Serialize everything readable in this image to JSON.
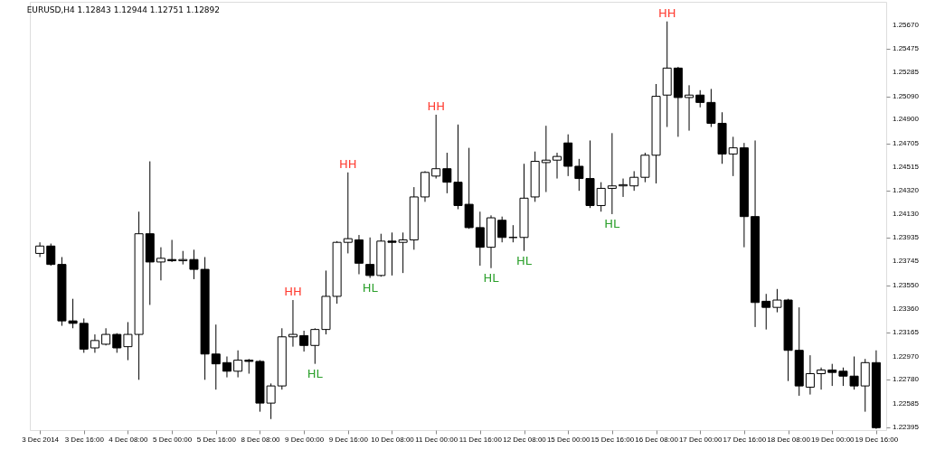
{
  "chart_data": {
    "type": "candlestick",
    "title": "EURUSD,H4  1.12843 1.12944 1.12751 1.12892",
    "categories": [
      "3 Dec 2014",
      null,
      null,
      null,
      "3 Dec 16:00",
      null,
      null,
      null,
      "4 Dec 08:00",
      null,
      null,
      null,
      "5 Dec 00:00",
      null,
      null,
      null,
      "5 Dec 16:00",
      null,
      null,
      null,
      "8 Dec 08:00",
      null,
      null,
      null,
      "9 Dec 00:00",
      null,
      null,
      null,
      "9 Dec 16:00",
      null,
      null,
      null,
      "10 Dec 08:00",
      null,
      null,
      null,
      "11 Dec 00:00",
      null,
      null,
      null,
      "11 Dec 16:00",
      null,
      null,
      null,
      "12 Dec 08:00",
      null,
      null,
      null,
      "15 Dec 00:00",
      null,
      null,
      null,
      "15 Dec 16:00",
      null,
      null,
      null,
      "16 Dec 08:00",
      null,
      null,
      null,
      "17 Dec 00:00",
      null,
      null,
      null,
      "17 Dec 16:00",
      null,
      null,
      null,
      "18 Dec 08:00",
      null,
      null,
      null,
      "19 Dec 00:00",
      null,
      null,
      null,
      "19 Dec 16:00"
    ],
    "ohlc": [
      [
        1.2381,
        1.239,
        1.2378,
        1.2387
      ],
      [
        1.2387,
        1.2389,
        1.2371,
        1.2372
      ],
      [
        1.2372,
        1.2378,
        1.2322,
        1.2326
      ],
      [
        1.2326,
        1.2344,
        1.232,
        1.2324
      ],
      [
        1.2324,
        1.2328,
        1.23,
        1.2303
      ],
      [
        1.2304,
        1.2315,
        1.23,
        1.231
      ],
      [
        1.2307,
        1.232,
        1.2306,
        1.2315
      ],
      [
        1.2315,
        1.2316,
        1.23,
        1.2304
      ],
      [
        1.2305,
        1.2325,
        1.2294,
        1.2315
      ],
      [
        1.2315,
        1.2415,
        1.2278,
        1.2397
      ],
      [
        1.2397,
        1.2456,
        1.2339,
        1.2374
      ],
      [
        1.2374,
        1.2386,
        1.2359,
        1.2377
      ],
      [
        1.2376,
        1.2392,
        1.2374,
        1.2375
      ],
      [
        1.2375,
        1.2383,
        1.2372,
        1.2376
      ],
      [
        1.2376,
        1.2384,
        1.236,
        1.2368
      ],
      [
        1.2368,
        1.2378,
        1.2278,
        1.2299
      ],
      [
        1.2299,
        1.2323,
        1.227,
        1.2291
      ],
      [
        1.2292,
        1.2297,
        1.228,
        1.2285
      ],
      [
        1.2285,
        1.2302,
        1.228,
        1.2294
      ],
      [
        1.2294,
        1.2295,
        1.2283,
        1.2293
      ],
      [
        1.2293,
        1.2294,
        1.2252,
        1.2259
      ],
      [
        1.2259,
        1.2275,
        1.2246,
        1.2273
      ],
      [
        1.2273,
        1.232,
        1.227,
        1.2313
      ],
      [
        1.2313,
        1.2343,
        1.2305,
        1.2315
      ],
      [
        1.2314,
        1.2318,
        1.2301,
        1.2306
      ],
      [
        1.2306,
        1.232,
        1.2291,
        1.2319
      ],
      [
        1.2319,
        1.2367,
        1.2315,
        1.2346
      ],
      [
        1.2346,
        1.2391,
        1.234,
        1.239
      ],
      [
        1.239,
        1.2447,
        1.2381,
        1.2393
      ],
      [
        1.2392,
        1.2396,
        1.2364,
        1.2373
      ],
      [
        1.2372,
        1.2394,
        1.2361,
        1.2363
      ],
      [
        1.2363,
        1.2397,
        1.2362,
        1.2391
      ],
      [
        1.2391,
        1.2398,
        1.2363,
        1.239
      ],
      [
        1.239,
        1.2398,
        1.2365,
        1.2392
      ],
      [
        1.2392,
        1.2435,
        1.2384,
        1.2427
      ],
      [
        1.2427,
        1.2448,
        1.2423,
        1.2447
      ],
      [
        1.2444,
        1.2494,
        1.2442,
        1.245
      ],
      [
        1.245,
        1.2463,
        1.243,
        1.2439
      ],
      [
        1.2439,
        1.2486,
        1.2417,
        1.242
      ],
      [
        1.2421,
        1.2467,
        1.2401,
        1.2402
      ],
      [
        1.2402,
        1.2415,
        1.2371,
        1.2386
      ],
      [
        1.2386,
        1.2412,
        1.2369,
        1.241
      ],
      [
        1.2408,
        1.2411,
        1.239,
        1.2394
      ],
      [
        1.2394,
        1.2404,
        1.239,
        1.2394
      ],
      [
        1.2394,
        1.2454,
        1.2383,
        1.2426
      ],
      [
        1.2427,
        1.2464,
        1.2423,
        1.2456
      ],
      [
        1.2455,
        1.2485,
        1.2431,
        1.2457
      ],
      [
        1.2457,
        1.2463,
        1.2442,
        1.246
      ],
      [
        1.2471,
        1.2478,
        1.2444,
        1.2452
      ],
      [
        1.2452,
        1.2458,
        1.2432,
        1.2442
      ],
      [
        1.2442,
        1.2473,
        1.2418,
        1.242
      ],
      [
        1.242,
        1.2439,
        1.2415,
        1.2434
      ],
      [
        1.2434,
        1.2479,
        1.2413,
        1.2436
      ],
      [
        1.2436,
        1.2442,
        1.2427,
        1.2437
      ],
      [
        1.2436,
        1.2448,
        1.2432,
        1.2443
      ],
      [
        1.2443,
        1.2463,
        1.2439,
        1.2461
      ],
      [
        1.2461,
        1.2519,
        1.2438,
        1.2509
      ],
      [
        1.251,
        1.257,
        1.2484,
        1.2532
      ],
      [
        1.2532,
        1.2533,
        1.2476,
        1.2508
      ],
      [
        1.2508,
        1.2518,
        1.2481,
        1.251
      ],
      [
        1.251,
        1.2514,
        1.25,
        1.2504
      ],
      [
        1.2504,
        1.2515,
        1.2484,
        1.2487
      ],
      [
        1.2487,
        1.2496,
        1.2454,
        1.2462
      ],
      [
        1.2462,
        1.2476,
        1.2444,
        1.2467
      ],
      [
        1.2467,
        1.2471,
        1.2386,
        1.2411
      ],
      [
        1.2411,
        1.2473,
        1.2321,
        1.2341
      ],
      [
        1.2342,
        1.2348,
        1.2319,
        1.2337
      ],
      [
        1.2337,
        1.2352,
        1.2333,
        1.2343
      ],
      [
        1.2343,
        1.2344,
        1.2277,
        1.2302
      ],
      [
        1.2302,
        1.2337,
        1.2265,
        1.2273
      ],
      [
        1.2272,
        1.2298,
        1.2266,
        1.2283
      ],
      [
        1.2283,
        1.2288,
        1.227,
        1.2286
      ],
      [
        1.2286,
        1.2291,
        1.2273,
        1.2284
      ],
      [
        1.2285,
        1.2288,
        1.2273,
        1.2281
      ],
      [
        1.2281,
        1.2297,
        1.227,
        1.2273
      ],
      [
        1.2273,
        1.2295,
        1.2252,
        1.2292
      ],
      [
        1.2292,
        1.2302,
        1.2238,
        1.2239
      ]
    ],
    "ylim": [
      1.2237,
      1.2586
    ],
    "yticks": [
      {
        "value": 1.2567,
        "label": "1.25670"
      },
      {
        "value": 1.25475,
        "label": "1.25475"
      },
      {
        "value": 1.25285,
        "label": "1.25285"
      },
      {
        "value": 1.2509,
        "label": "1.25090"
      },
      {
        "value": 1.249,
        "label": "1.24900"
      },
      {
        "value": 1.24705,
        "label": "1.24705"
      },
      {
        "value": 1.24515,
        "label": "1.24515"
      },
      {
        "value": 1.2432,
        "label": "1.24320"
      },
      {
        "value": 1.2413,
        "label": "1.24130"
      },
      {
        "value": 1.23935,
        "label": "1.23935"
      },
      {
        "value": 1.23745,
        "label": "1.23745"
      },
      {
        "value": 1.2355,
        "label": "1.23550"
      },
      {
        "value": 1.2336,
        "label": "1.23360"
      },
      {
        "value": 1.23165,
        "label": "1.23165"
      },
      {
        "value": 1.2297,
        "label": "1.22970"
      },
      {
        "value": 1.2278,
        "label": "1.22780"
      },
      {
        "value": 1.22585,
        "label": "1.22585"
      },
      {
        "value": 1.22395,
        "label": "1.22395"
      }
    ],
    "annotations": [
      {
        "text": "HH",
        "y": 1.2343
      },
      {
        "text": "HL",
        "y": 1.2291
      },
      {
        "text": "HH",
        "y": 1.2447
      },
      {
        "text": "HL",
        "y": 1.2361
      },
      {
        "text": "HH",
        "y": 1.2494
      },
      {
        "text": "HL",
        "y": 1.2369
      },
      {
        "text": "HL",
        "y": 1.2383
      },
      {
        "text": "HL",
        "y": 1.2413
      },
      {
        "text": "HH",
        "y": 1.257
      }
    ],
    "grid": false
  }
}
